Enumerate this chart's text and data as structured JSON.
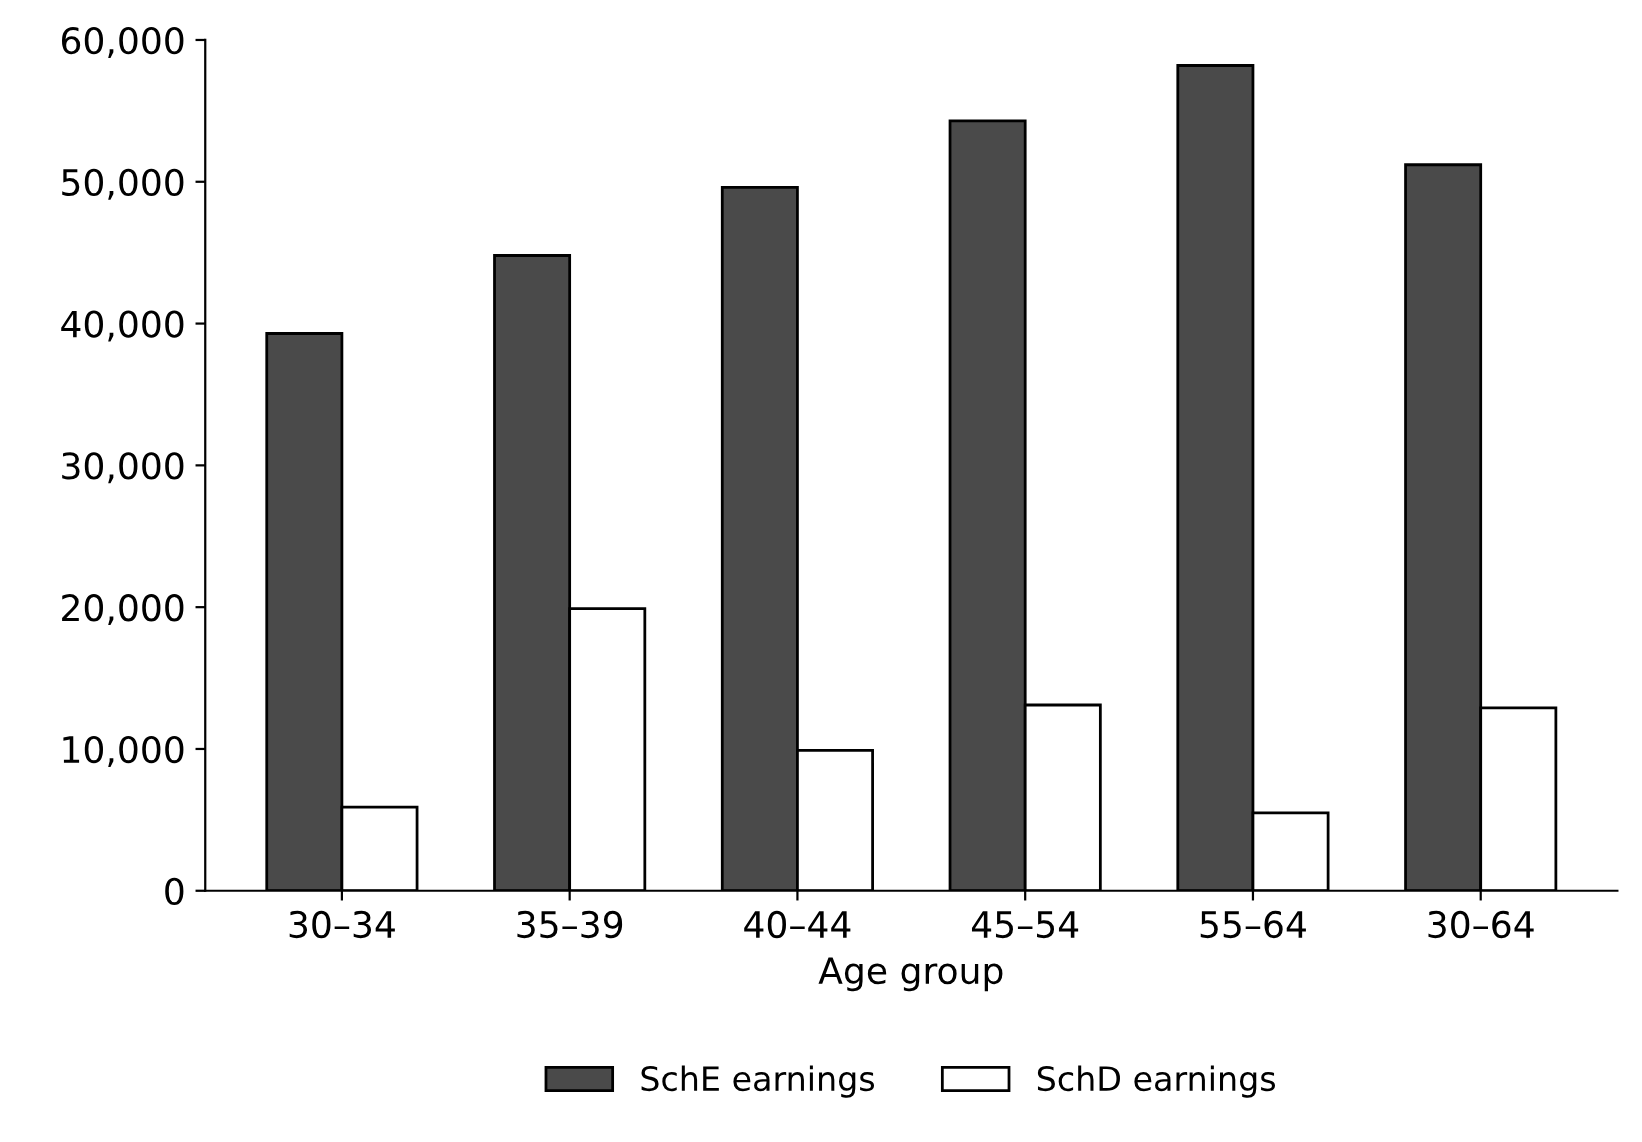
{
  "chart_data": {
    "type": "bar",
    "xlabel": "Age group",
    "categories": [
      "30–34",
      "35–39",
      "40–44",
      "45–54",
      "55–64",
      "30–64"
    ],
    "series": [
      {
        "name": "SchE earnings",
        "color": "#4a4a4a",
        "values": [
          39300,
          44800,
          49600,
          54300,
          58200,
          51200
        ]
      },
      {
        "name": "SchD earnings",
        "color": "#ffffff",
        "values": [
          5900,
          19900,
          9900,
          13100,
          5500,
          12900
        ]
      }
    ],
    "ylim": [
      0,
      60000
    ],
    "yticks": [
      {
        "value": 0,
        "label": "0"
      },
      {
        "value": 10000,
        "label": "10,000"
      },
      {
        "value": 20000,
        "label": "20,000"
      },
      {
        "value": 30000,
        "label": "30,000"
      },
      {
        "value": 40000,
        "label": "40,000"
      },
      {
        "value": 50000,
        "label": "50,000"
      },
      {
        "value": 60000,
        "label": "60,000"
      }
    ],
    "grid": false,
    "legend": "bottom"
  }
}
